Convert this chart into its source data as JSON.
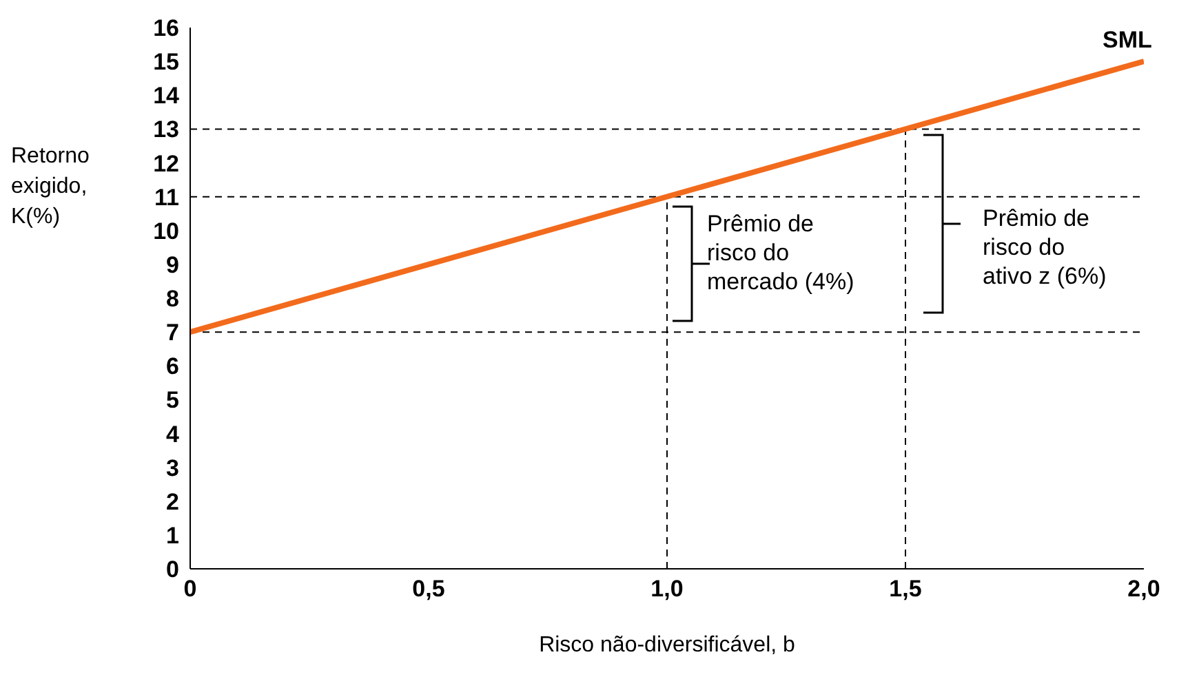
{
  "chart_data": {
    "type": "line",
    "xlabel": "Risco não-diversificável, b",
    "ylabel": "Retorno exigido, K(%)",
    "series": [
      {
        "name": "SML",
        "color": "#f26b1d",
        "x": [
          0,
          2.0
        ],
        "values": [
          7,
          15
        ]
      }
    ],
    "xlim": [
      0,
      2.0
    ],
    "xticks": [
      0,
      {
        "value": 0.5,
        "label": "0,5"
      },
      {
        "value": 1.0,
        "label": "1,0"
      },
      {
        "value": 1.5,
        "label": "1,5"
      },
      {
        "value": 2.0,
        "label": "2,0"
      }
    ],
    "ylim": [
      0,
      16
    ],
    "yticks": [
      0,
      1,
      2,
      3,
      4,
      5,
      6,
      7,
      8,
      9,
      10,
      11,
      12,
      13,
      14,
      15,
      16
    ],
    "ref_lines": [
      {
        "axis": "y",
        "value": 7,
        "color": "#000000",
        "line_style": "dashed"
      },
      {
        "axis": "y",
        "value": 11,
        "color": "#000000",
        "line_style": "dashed"
      },
      {
        "axis": "y",
        "value": 13,
        "color": "#000000",
        "line_style": "dashed"
      },
      {
        "axis": "x",
        "value": 1.0,
        "color": "#000000",
        "line_style": "dashed"
      },
      {
        "axis": "x",
        "value": 1.5,
        "color": "#000000",
        "line_style": "dashed"
      }
    ],
    "annotations": [
      "Prêmio de risco do mercado (4%)",
      "Prêmio de risco do ativo z (6%)"
    ],
    "grid": false,
    "legend": false,
    "marker": "none",
    "line_style": "solid"
  }
}
